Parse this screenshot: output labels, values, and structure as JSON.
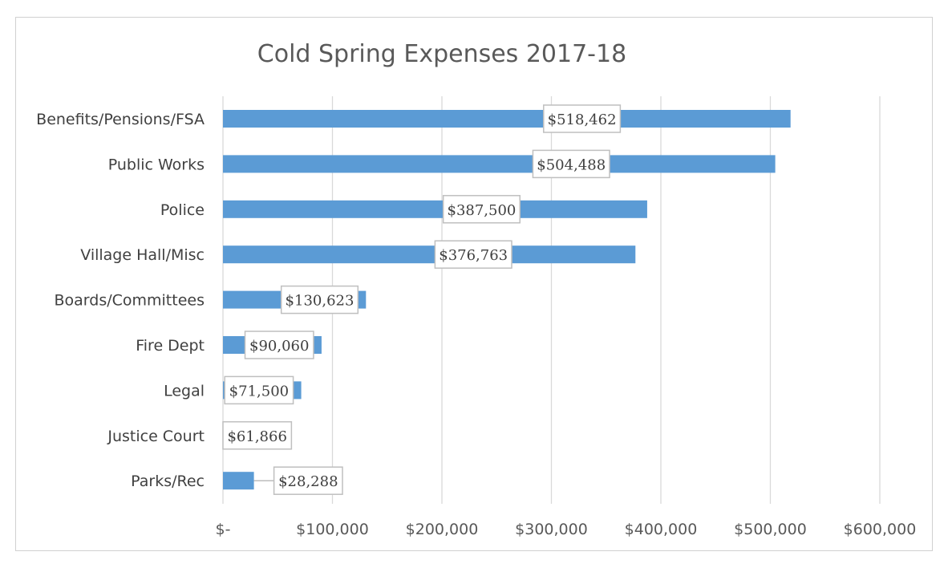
{
  "chart_data": {
    "type": "bar",
    "orientation": "horizontal",
    "title": "Cold Spring Expenses 2017-18",
    "categories": [
      "Benefits/Pensions/FSA",
      "Public Works",
      "Police",
      "Village Hall/Misc",
      "Boards/Committees",
      "Fire Dept",
      "Legal",
      "Justice Court",
      "Parks/Rec"
    ],
    "values": [
      518462,
      504488,
      387500,
      376763,
      130623,
      90060,
      71500,
      61866,
      28288
    ],
    "data_labels": [
      "$518,462",
      "$504,488",
      "$387,500",
      "$376,763",
      "$130,623",
      "$90,060",
      "$71,500",
      "$61,866",
      "$28,288"
    ],
    "xlim": [
      0,
      600000
    ],
    "x_ticks": [
      0,
      100000,
      200000,
      300000,
      400000,
      500000,
      600000
    ],
    "x_tick_labels": [
      "$-",
      "$100,000",
      "$200,000",
      "$300,000",
      "$400,000",
      "$500,000",
      "$600,000"
    ],
    "xlabel": "",
    "ylabel": "",
    "grid": true,
    "legend": "none",
    "bar_color": "#5b9bd5",
    "grid_color": "#d9d9d9"
  }
}
